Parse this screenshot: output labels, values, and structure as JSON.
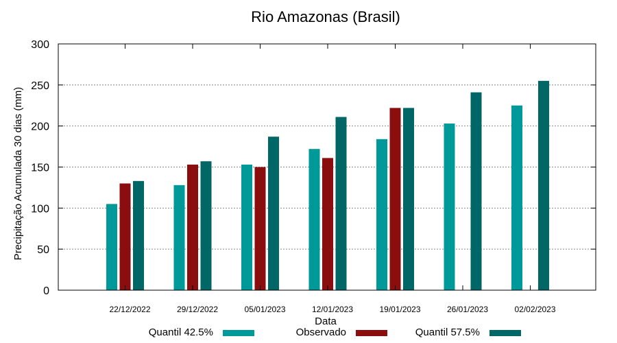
{
  "chart_data": {
    "type": "bar",
    "title": "Rio Amazonas (Brasil)",
    "xlabel": "Data",
    "ylabel": "Precipitação Acumulada 30 dias (mm)",
    "ylim": [
      0,
      300
    ],
    "yticks": [
      0,
      50,
      100,
      150,
      200,
      250,
      300
    ],
    "grid": true,
    "legend_position": "bottom",
    "categories": [
      "22/12/2022",
      "29/12/2022",
      "05/01/2023",
      "12/01/2023",
      "19/01/2023",
      "26/01/2023",
      "02/02/2023"
    ],
    "series": [
      {
        "name": "Quantil 42.5%",
        "color": "#009999",
        "values": [
          105,
          128,
          153,
          172,
          184,
          203,
          225
        ]
      },
      {
        "name": "Observado",
        "color": "#8b0e0e",
        "values": [
          130,
          153,
          150,
          161,
          222,
          null,
          null
        ]
      },
      {
        "name": "Quantil 57.5%",
        "color": "#006666",
        "values": [
          133,
          157,
          187,
          211,
          222,
          241,
          255
        ]
      }
    ]
  }
}
